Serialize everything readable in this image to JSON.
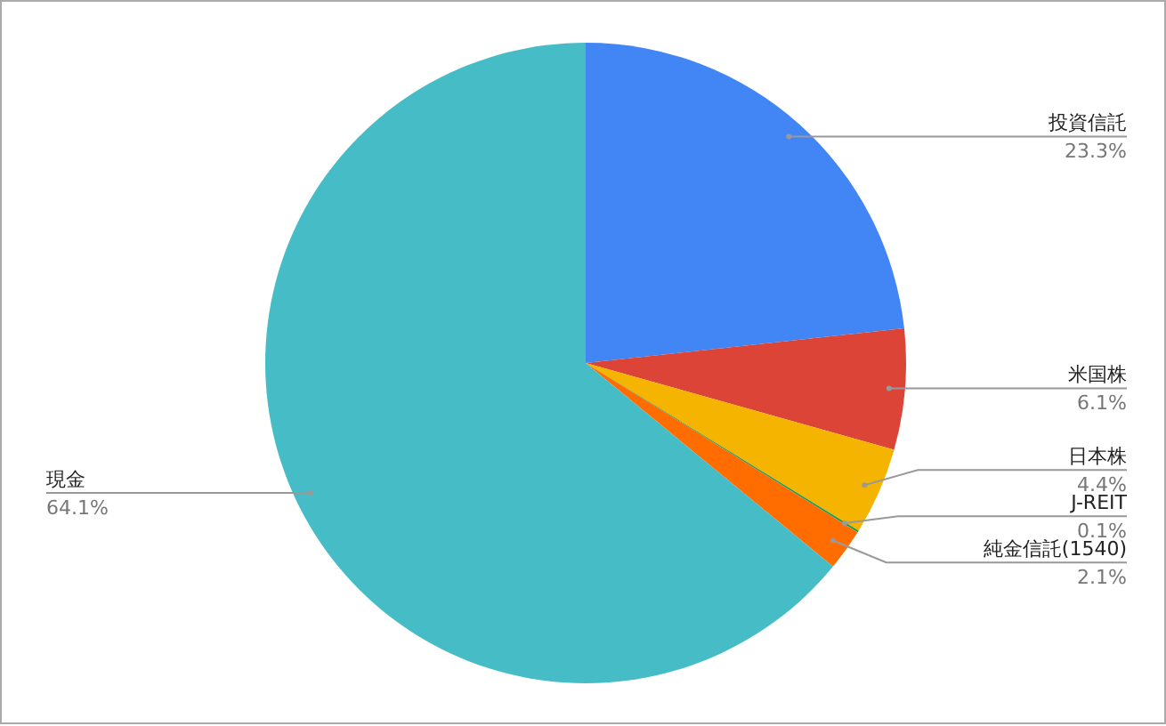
{
  "chart_data": {
    "type": "pie",
    "categories": [
      "投資信託",
      "米国株",
      "日本株",
      "J-REIT",
      "純金信託(1540)",
      "現金"
    ],
    "values": [
      23.3,
      6.1,
      4.4,
      0.1,
      2.1,
      64.1
    ],
    "value_labels": [
      "23.3%",
      "6.1%",
      "4.4%",
      "0.1%",
      "2.1%",
      "64.1%"
    ],
    "colors": [
      "#4285f4",
      "#db4437",
      "#f4b400",
      "#0f9d58",
      "#ff6d01",
      "#46bdc6"
    ],
    "legend": false
  }
}
